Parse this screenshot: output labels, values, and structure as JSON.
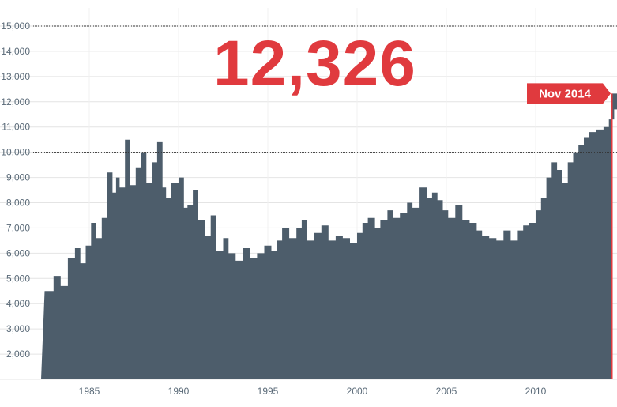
{
  "colors": {
    "area": "#4d5d6b",
    "accent": "#e03a3e",
    "grid": "#e4e4e4",
    "ref": "#333333"
  },
  "headline_value": "12,326",
  "callout_label": "Nov 2014",
  "chart_data": {
    "type": "area",
    "title": "",
    "xlabel": "",
    "ylabel": "",
    "xlim": [
      1982.5,
      2014.9
    ],
    "ylim": [
      0,
      15000
    ],
    "grid": true,
    "legend": "none",
    "reference_lines": [
      15000,
      10000
    ],
    "y_ticks": [
      "2,000",
      "3,000",
      "4,000",
      "5,000",
      "6,000",
      "7,000",
      "8,000",
      "9,000",
      "10,000",
      "11,000",
      "12,000",
      "13,000",
      "14,000",
      "15,000"
    ],
    "y_tick_values": [
      2000,
      3000,
      4000,
      5000,
      6000,
      7000,
      8000,
      9000,
      10000,
      11000,
      12000,
      13000,
      14000,
      15000
    ],
    "x_ticks": [
      "1985",
      "1990",
      "1995",
      "2000",
      "2005",
      "2010"
    ],
    "x_tick_values": [
      1985,
      1990,
      1995,
      2000,
      2005,
      2010
    ],
    "series": [
      {
        "x": [
          1982.5,
          1983,
          1983.4,
          1983.8,
          1984.2,
          1984.5,
          1984.8,
          1985.1,
          1985.4,
          1985.7,
          1986,
          1986.3,
          1986.5,
          1986.7,
          1987,
          1987.3,
          1987.6,
          1987.9,
          1988.2,
          1988.5,
          1988.8,
          1989.1,
          1989.3,
          1989.6,
          1990,
          1990.3,
          1990.5,
          1990.8,
          1991.1,
          1991.5,
          1991.8,
          1992.1,
          1992.5,
          1992.8,
          1993.2,
          1993.6,
          1994,
          1994.4,
          1994.8,
          1995.2,
          1995.5,
          1995.8,
          1996.2,
          1996.6,
          1996.9,
          1997.2,
          1997.6,
          1998,
          1998.4,
          1998.8,
          1999.2,
          1999.6,
          2000,
          2000.3,
          2000.6,
          2001,
          2001.3,
          2001.7,
          2002,
          2002.4,
          2002.8,
          2003.1,
          2003.5,
          2003.9,
          2004.2,
          2004.5,
          2004.8,
          2005.1,
          2005.5,
          2005.9,
          2006.3,
          2006.7,
          2007,
          2007.4,
          2007.8,
          2008.2,
          2008.6,
          2009,
          2009.3,
          2009.6,
          2010,
          2010.3,
          2010.6,
          2010.9,
          2011.2,
          2011.5,
          2011.8,
          2012.1,
          2012.4,
          2012.7,
          2013,
          2013.4,
          2013.8,
          2014.1,
          2014.4,
          2014.7,
          2014.85
        ],
        "y": [
          4500,
          5100,
          4700,
          5800,
          6200,
          5600,
          6300,
          7200,
          6600,
          7400,
          9200,
          8400,
          9000,
          8600,
          10500,
          8700,
          9400,
          10000,
          8800,
          9600,
          10400,
          8600,
          8200,
          8800,
          9000,
          7800,
          7900,
          8500,
          7300,
          6700,
          7500,
          6100,
          6600,
          6000,
          5700,
          6200,
          5800,
          6000,
          6300,
          6100,
          6500,
          7000,
          6600,
          7000,
          7300,
          6500,
          6800,
          7100,
          6500,
          6700,
          6600,
          6400,
          6800,
          7200,
          7400,
          7000,
          7300,
          7700,
          7400,
          7600,
          8000,
          7800,
          8600,
          8200,
          8400,
          8100,
          7700,
          7400,
          7900,
          7300,
          7200,
          6900,
          6700,
          6600,
          6500,
          6900,
          6500,
          6900,
          7100,
          7200,
          7700,
          8200,
          9000,
          9600,
          9300,
          8800,
          9600,
          10000,
          10300,
          10600,
          10800,
          10900,
          11000,
          11300,
          11700,
          12000,
          12326
        ]
      }
    ]
  }
}
